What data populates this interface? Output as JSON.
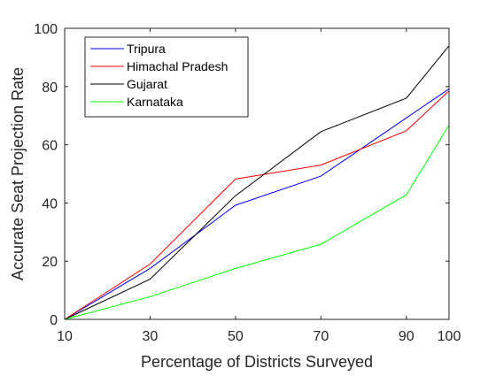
{
  "chart_data": {
    "type": "line",
    "title": "",
    "xlabel": "Percentage of Districts Surveyed",
    "ylabel": "Accurate Seat Projection Rate",
    "x": [
      10,
      30,
      50,
      70,
      90,
      100
    ],
    "xlim": [
      10,
      100
    ],
    "ylim": [
      0,
      100
    ],
    "xticks": [
      10,
      30,
      50,
      70,
      90,
      100
    ],
    "yticks": [
      0,
      20,
      40,
      60,
      80,
      100
    ],
    "grid": false,
    "legend_position": "top-left",
    "series": [
      {
        "name": "Tripura",
        "color": "#0000ff",
        "values": [
          0,
          17.5,
          39.2,
          49.2,
          69.2,
          79.2
        ]
      },
      {
        "name": "Himachal Pradesh",
        "color": "#ff0000",
        "values": [
          0,
          19,
          48.2,
          53,
          64.8,
          78.5
        ]
      },
      {
        "name": "Gujarat",
        "color": "#000000",
        "values": [
          0,
          13.8,
          42.5,
          64.5,
          76,
          94
        ]
      },
      {
        "name": "Karnataka",
        "color": "#00ff00",
        "values": [
          0,
          7.8,
          17.5,
          25.8,
          42.8,
          66.8
        ]
      }
    ]
  }
}
